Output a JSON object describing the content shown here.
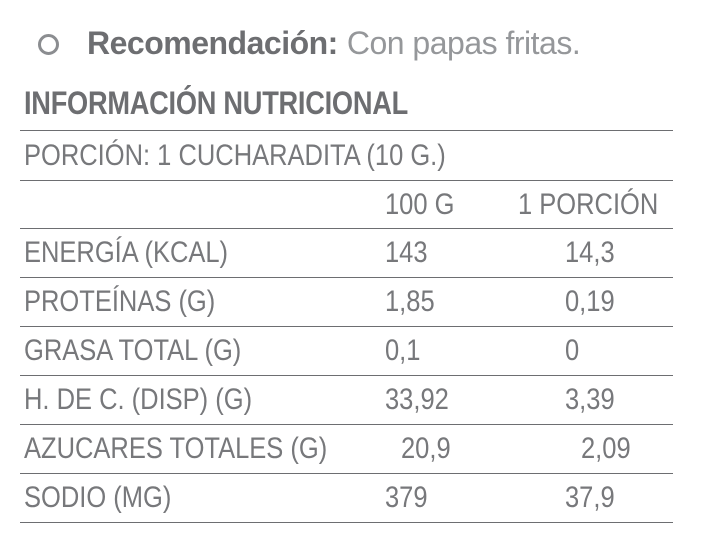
{
  "recommendation": {
    "bullet_icon": "circle-outline",
    "label": "Recomendación:",
    "text": "Con papas fritas."
  },
  "nutrition": {
    "title": "INFORMACIÓN NUTRICIONAL",
    "portion_line": "PORCIÓN: 1 CUCHARADITA (10 G.)",
    "columns": {
      "per100": "100 G",
      "portion": "1 PORCIÓN"
    },
    "rows": [
      {
        "label": "ENERGÍA (KCAL)",
        "per100": "143",
        "portion": "14,3"
      },
      {
        "label": "PROTEÍNAS (G)",
        "per100": "1,85",
        "portion": "0,19"
      },
      {
        "label": "GRASA TOTAL (G)",
        "per100": "0,1",
        "portion": "0"
      },
      {
        "label": "H. DE C. (DISP) (G)",
        "per100": "33,92",
        "portion": "3,39"
      },
      {
        "label": "AZUCARES TOTALES (G)",
        "per100": "20,9",
        "portion": "2,09"
      },
      {
        "label": "SODIO (MG)",
        "per100": "379",
        "portion": "37,9"
      }
    ]
  },
  "colors": {
    "background": "#ffffff",
    "text_dark": "#6d6e71",
    "text_medium": "#77787b",
    "text_light": "#95979a",
    "rule_line": "#6d6e71",
    "bullet_ring": "#8b8d90"
  }
}
